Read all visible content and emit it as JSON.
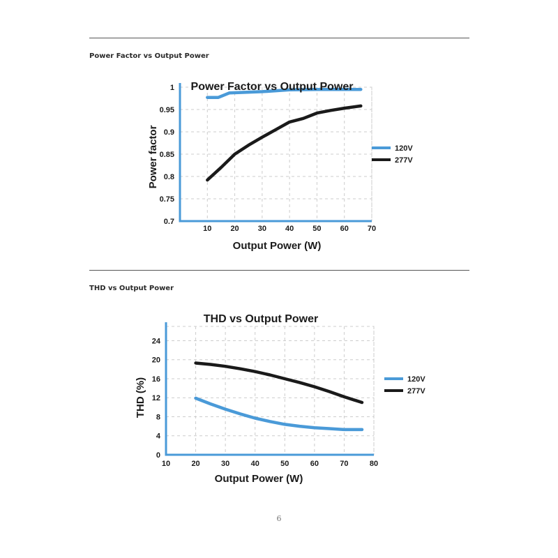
{
  "sections": [
    {
      "title": "Power Factor vs Output Power"
    },
    {
      "title": "THD vs Output Power"
    }
  ],
  "page_number": "6",
  "colors": {
    "v120": "#4a9ad8",
    "v277": "#1a1a1a",
    "axis": "#4a9ad8",
    "grid": "#cccccc"
  },
  "chart_data": [
    {
      "type": "line",
      "title": "Power Factor vs Output Power",
      "xlabel": "Output Power (W)",
      "ylabel": "Power factor",
      "xlim": [
        0,
        70
      ],
      "ylim": [
        0.7,
        1.0
      ],
      "xticks": [
        10,
        20,
        30,
        40,
        50,
        60,
        70
      ],
      "yticks": [
        0.7,
        0.75,
        0.8,
        0.85,
        0.9,
        0.95,
        1
      ],
      "ytick_labels": [
        "0.7",
        "0.75",
        "0.8",
        "0.85",
        "0.9",
        "0.95",
        "1"
      ],
      "grid": true,
      "legend": "right",
      "series": [
        {
          "name": "120V",
          "color": "#4a9ad8",
          "points": [
            [
              10,
              0.977
            ],
            [
              14,
              0.977
            ],
            [
              18,
              0.987
            ],
            [
              30,
              0.99
            ],
            [
              40,
              0.994
            ],
            [
              50,
              0.995
            ],
            [
              60,
              0.995
            ],
            [
              66,
              0.995
            ]
          ]
        },
        {
          "name": "277V",
          "color": "#1a1a1a",
          "points": [
            [
              10,
              0.792
            ],
            [
              15,
              0.82
            ],
            [
              20,
              0.85
            ],
            [
              25,
              0.87
            ],
            [
              30,
              0.888
            ],
            [
              35,
              0.905
            ],
            [
              40,
              0.922
            ],
            [
              45,
              0.93
            ],
            [
              50,
              0.942
            ],
            [
              55,
              0.948
            ],
            [
              60,
              0.953
            ],
            [
              66,
              0.958
            ]
          ]
        }
      ]
    },
    {
      "type": "line",
      "title": "THD vs Output Power",
      "xlabel": "Output Power (W)",
      "ylabel": "THD (%)",
      "xlim": [
        10,
        80
      ],
      "ylim": [
        0,
        27
      ],
      "xticks": [
        10,
        20,
        30,
        40,
        50,
        60,
        70,
        80
      ],
      "yticks": [
        0,
        4,
        8,
        12,
        16,
        20,
        24
      ],
      "ytick_labels": [
        "0",
        "4",
        "8",
        "12",
        "16",
        "20",
        "24"
      ],
      "grid": true,
      "legend": "right",
      "series": [
        {
          "name": "120V",
          "color": "#4a9ad8",
          "points": [
            [
              20,
              11.9
            ],
            [
              25,
              10.7
            ],
            [
              30,
              9.6
            ],
            [
              35,
              8.6
            ],
            [
              40,
              7.7
            ],
            [
              45,
              7.0
            ],
            [
              50,
              6.4
            ],
            [
              55,
              6.0
            ],
            [
              60,
              5.7
            ],
            [
              65,
              5.5
            ],
            [
              70,
              5.3
            ],
            [
              76,
              5.3
            ]
          ]
        },
        {
          "name": "277V",
          "color": "#1a1a1a",
          "points": [
            [
              20,
              19.3
            ],
            [
              25,
              19.0
            ],
            [
              30,
              18.6
            ],
            [
              35,
              18.1
            ],
            [
              40,
              17.5
            ],
            [
              45,
              16.8
            ],
            [
              50,
              16.0
            ],
            [
              55,
              15.2
            ],
            [
              60,
              14.3
            ],
            [
              65,
              13.3
            ],
            [
              70,
              12.2
            ],
            [
              76,
              11.0
            ]
          ]
        }
      ]
    }
  ]
}
